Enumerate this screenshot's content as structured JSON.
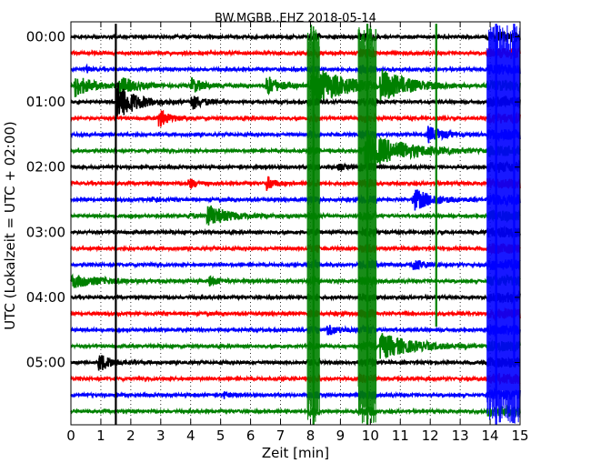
{
  "chart_data": {
    "type": "line",
    "title": "BW.MGBB..EHZ 2018-05-14",
    "xlabel": "Zeit  [min]",
    "ylabel": "UTC (Lokalzeit = UTC + 02:00)",
    "xlim": [
      0,
      15
    ],
    "x_ticks": [
      "0",
      "1",
      "2",
      "3",
      "4",
      "5",
      "6",
      "7",
      "8",
      "9",
      "10",
      "11",
      "12",
      "13",
      "14",
      "15"
    ],
    "y_ticks": [
      "00:00",
      "01:00",
      "02:00",
      "03:00",
      "04:00",
      "05:00"
    ],
    "trace_interval_min": 15,
    "trace_start": "00:00",
    "trace_count": 24,
    "trace_colors": [
      "#000000",
      "#ff0000",
      "#0000ff",
      "#008000"
    ],
    "grid": "vertical dotted",
    "events": [
      {
        "trace": 2,
        "t": 0.5,
        "amp": 0.6,
        "dur": 0.3
      },
      {
        "trace": 3,
        "t": 0.1,
        "amp": 1.4,
        "dur": 1.3
      },
      {
        "trace": 3,
        "t": 1.6,
        "amp": 1.2,
        "dur": 1.2
      },
      {
        "trace": 3,
        "t": 4.0,
        "amp": 1.0,
        "dur": 0.9
      },
      {
        "trace": 3,
        "t": 6.5,
        "amp": 1.3,
        "dur": 1.0
      },
      {
        "trace": 3,
        "t": 8.0,
        "amp": 2.6,
        "dur": 2.5
      },
      {
        "trace": 3,
        "t": 10.3,
        "amp": 2.2,
        "dur": 2.0
      },
      {
        "trace": 4,
        "t": 1.5,
        "amp": 2.6,
        "dur": 1.3
      },
      {
        "trace": 4,
        "t": 4.0,
        "amp": 1.0,
        "dur": 0.9
      },
      {
        "trace": 5,
        "t": 2.9,
        "amp": 1.3,
        "dur": 0.7
      },
      {
        "trace": 6,
        "t": 11.9,
        "amp": 1.0,
        "dur": 1.2
      },
      {
        "trace": 7,
        "t": 9.8,
        "amp": 2.2,
        "dur": 3.0
      },
      {
        "trace": 8,
        "t": 8.9,
        "amp": 0.4,
        "dur": 0.6
      },
      {
        "trace": 9,
        "t": 3.9,
        "amp": 0.8,
        "dur": 0.5
      },
      {
        "trace": 9,
        "t": 6.5,
        "amp": 1.0,
        "dur": 0.6
      },
      {
        "trace": 10,
        "t": 2.7,
        "amp": 0.6,
        "dur": 0.3
      },
      {
        "trace": 10,
        "t": 11.4,
        "amp": 1.4,
        "dur": 1.5
      },
      {
        "trace": 11,
        "t": 4.5,
        "amp": 1.5,
        "dur": 1.5
      },
      {
        "trace": 11,
        "t": 3.9,
        "amp": 0.6,
        "dur": 0.4
      },
      {
        "trace": 14,
        "t": 11.4,
        "amp": 0.8,
        "dur": 0.8
      },
      {
        "trace": 15,
        "t": 0.0,
        "amp": 0.8,
        "dur": 2.2
      },
      {
        "trace": 15,
        "t": 4.6,
        "amp": 0.7,
        "dur": 0.6
      },
      {
        "trace": 18,
        "t": 8.5,
        "amp": 0.7,
        "dur": 1.0
      },
      {
        "trace": 19,
        "t": 10.3,
        "amp": 1.6,
        "dur": 2.4
      },
      {
        "trace": 20,
        "t": 0.9,
        "amp": 1.3,
        "dur": 0.8
      },
      {
        "trace": 22,
        "t": 5.1,
        "amp": 0.6,
        "dur": 0.3
      }
    ],
    "spikes": [
      {
        "t": 1.5,
        "from": 0,
        "to": 24,
        "color": "#000000"
      },
      {
        "t": 8.1,
        "from": 1,
        "to": 24,
        "color": "#008000"
      },
      {
        "t": 9.9,
        "from": 0,
        "to": 24,
        "color": "#008000"
      },
      {
        "t": 12.2,
        "from": 0,
        "to": 18,
        "color": "#008000"
      },
      {
        "t": 14.2,
        "from": 0,
        "to": 24,
        "color": "#0000ff"
      },
      {
        "t": 14.8,
        "from": 0,
        "to": 20,
        "color": "#0000ff"
      }
    ],
    "noise_bursts": [
      {
        "tStart": 13.9,
        "tEnd": 15.0,
        "fromTrace": 0,
        "toTrace": 24,
        "amp": 0.8,
        "color": "#0000ff"
      },
      {
        "tStart": 9.6,
        "tEnd": 10.2,
        "fromTrace": 0,
        "toTrace": 24,
        "amp": 0.6,
        "color": "#008000"
      },
      {
        "tStart": 7.9,
        "tEnd": 8.3,
        "fromTrace": 0,
        "toTrace": 24,
        "amp": 0.5,
        "color": "#008000"
      }
    ]
  }
}
